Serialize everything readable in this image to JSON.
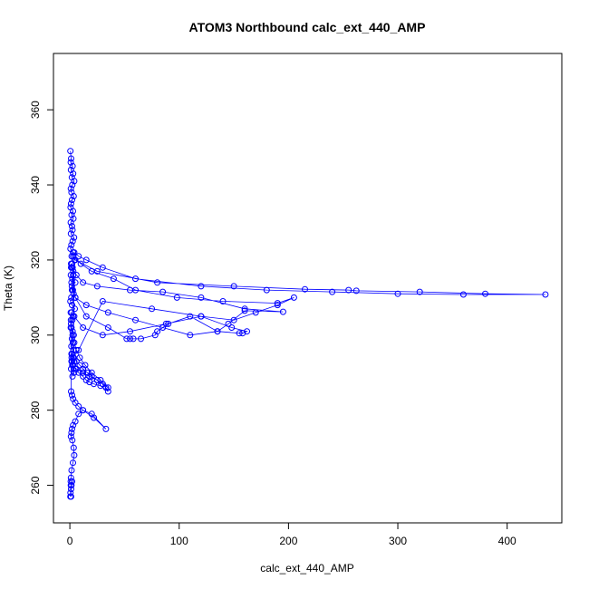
{
  "chart_data": {
    "type": "line",
    "title": "ATOM3 Northbound calc_ext_440_AMP",
    "xlabel": "calc_ext_440_AMP",
    "ylabel": "Theta (K)",
    "xlim": [
      -15,
      450
    ],
    "ylim": [
      250,
      375
    ],
    "xticks": [
      0,
      100,
      200,
      300,
      400
    ],
    "yticks": [
      260,
      280,
      300,
      320,
      340,
      360
    ],
    "grid": false,
    "color": "#0000ff",
    "markers": "open-circle",
    "series": [
      {
        "x": [
          0.5,
          1.2,
          0.8,
          2.5,
          1.0,
          3.0,
          1.8,
          4.0,
          2.2,
          0.9,
          1.5,
          3.5,
          2.0,
          1.1,
          0.7,
          2.8,
          1.6,
          3.2,
          0.8,
          1.9,
          2.4,
          1.0,
          3.8,
          2.6,
          1.4,
          0.6,
          2.9,
          1.7,
          4.2,
          2.1,
          1.2,
          3.1,
          0.9,
          2.3,
          5.0,
          1.8,
          2.7,
          3.4,
          1.3,
          0.5,
          2.0,
          4.5,
          1.6,
          3.0,
          2.2,
          1.1,
          0.8,
          2.5,
          3.6,
          1.9,
          2.8,
          1.4,
          3.3,
          2.0,
          1.7,
          4.0,
          2.6,
          1.2,
          3.9,
          2.4,
          4.0,
          8.0,
          15.0,
          30.0,
          60.0,
          120.0,
          180.0,
          240.0,
          300.0,
          360.0,
          435.0,
          380.0,
          320.0,
          262.0,
          255.0,
          215.0,
          150.0,
          80.0,
          25.0,
          5.0,
          3.0,
          10.0,
          20.0,
          40.0,
          60.0,
          98.0,
          140.0,
          190.0,
          205.0,
          190.0,
          170.0,
          150.0,
          120.0,
          88.0,
          55.0,
          30.0,
          12.0,
          4.0,
          2.5,
          6.0,
          12.0,
          25.0,
          55.0,
          85.0,
          120.0,
          160.0,
          195.0,
          160.0,
          145.0,
          135.0,
          110.0,
          85.0,
          60.0,
          35.0,
          15.0,
          5.0,
          2.0,
          1.5,
          3.0,
          1.2,
          2.0,
          5.0,
          15.0,
          35.0,
          52.0,
          55.0,
          58.0,
          65.0,
          78.0,
          80.0,
          90.0,
          110.0,
          135.0,
          155.0,
          158.0,
          162.0,
          148.0,
          120.0,
          75.0,
          30.0,
          8.0,
          3.0,
          1.5,
          2.2,
          6.0,
          12.0,
          18.0,
          25.0,
          30.0,
          33.0,
          35.0,
          28.0,
          22.0,
          18.0,
          15.0,
          12.0,
          8.0,
          5.0,
          3.0,
          2.0,
          1.5,
          3.5,
          6.0,
          9.0,
          12.0,
          16.0,
          20.0,
          25.0,
          30.0,
          35.0,
          28.0,
          20.0,
          14.0,
          9.0,
          6.0,
          4.0,
          2.5,
          1.5,
          1.0,
          0.8,
          1.2,
          2.0,
          3.0,
          5.0,
          8.0,
          12.0,
          20.0,
          33.0,
          22.0,
          12.0,
          8.0,
          5.0,
          3.0,
          2.0,
          1.5,
          1.0,
          2.2,
          3.5,
          4.0,
          2.8,
          1.6,
          1.0,
          0.8,
          1.4,
          2.0,
          1.2,
          0.6,
          1.1,
          0.9,
          0.5
        ],
        "y": [
          349,
          347,
          346,
          345,
          344,
          343,
          342,
          341,
          340,
          339,
          338,
          337,
          336,
          335,
          334,
          333,
          332,
          331,
          330,
          329,
          328,
          327,
          326,
          325,
          324,
          323,
          322,
          321,
          320,
          319,
          318,
          317,
          316,
          315,
          314,
          313,
          312,
          311,
          310,
          309,
          308,
          307,
          306,
          305,
          304,
          303,
          302,
          301,
          300,
          299,
          298,
          297,
          296,
          295,
          294,
          293,
          292,
          291,
          290,
          289,
          322,
          321,
          320,
          318,
          315,
          313,
          312,
          311.5,
          311,
          310.8,
          310.8,
          311,
          311.5,
          311.8,
          312,
          312.2,
          313,
          314,
          317,
          320,
          321,
          319,
          317,
          315,
          312,
          310,
          309,
          308.5,
          310,
          308,
          306,
          304,
          305,
          303,
          301,
          300,
          302,
          305,
          318,
          316,
          314,
          313,
          312,
          311.5,
          310,
          307,
          306.2,
          306.5,
          303,
          301,
          300,
          302,
          304,
          306,
          308,
          310,
          312,
          314,
          316,
          319,
          318,
          310,
          305,
          302,
          299,
          299,
          299,
          299,
          300,
          301,
          303,
          305,
          301,
          300.5,
          300.5,
          301,
          302,
          305,
          307,
          309,
          296,
          294,
          293,
          292,
          291,
          290,
          289,
          288,
          287,
          286,
          285,
          286.5,
          287,
          287.5,
          288,
          289,
          290,
          291,
          292,
          293,
          295,
          294,
          293,
          292,
          291,
          290,
          289,
          288,
          287,
          286,
          288,
          290,
          292,
          294,
          296,
          298,
          300,
          302,
          304,
          306,
          285,
          284,
          283,
          282,
          281,
          280,
          279,
          275,
          278,
          280,
          279,
          277,
          276,
          275,
          274,
          273,
          272,
          270,
          268,
          266,
          264,
          262,
          261,
          260,
          261,
          259,
          258,
          257,
          260,
          257
        ]
      }
    ]
  }
}
